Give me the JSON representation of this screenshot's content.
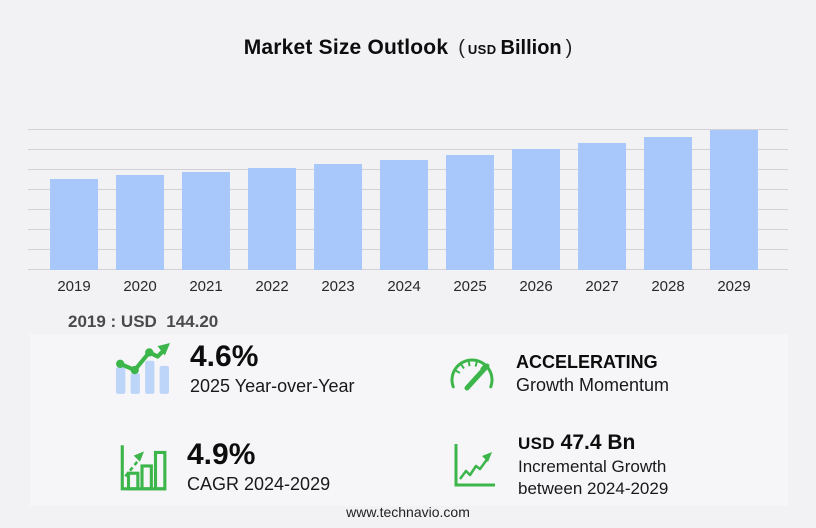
{
  "header": {
    "title": "Market Size Outlook",
    "paren_open": "(",
    "unit_currency": "USD",
    "unit_word": "Billion",
    "paren_close": ")"
  },
  "chart_data": {
    "type": "bar",
    "title": "Market Size Outlook (USD Billion)",
    "categories": [
      "2019",
      "2020",
      "2021",
      "2022",
      "2023",
      "2024",
      "2025",
      "2026",
      "2027",
      "2028",
      "2029"
    ],
    "values": [
      144.2,
      150.4,
      156.6,
      162.3,
      168.0,
      175.2,
      183.3,
      191.9,
      202.2,
      212.1,
      222.6
    ],
    "unit": "USD Billion",
    "xlabel": "",
    "ylabel": "",
    "ylim": [
      0,
      240
    ],
    "yaxis_labels_visible": false,
    "grid": true,
    "legend": "none",
    "bar_color": "#a8c8fb",
    "gridline_color": "#d2d2d6"
  },
  "annotation": {
    "base_year_value": "2019 : USD  144.20"
  },
  "stats": {
    "yoy": {
      "icon": "bar-chart-trend-icon",
      "value": "4.6%",
      "label": "2025 Year-over-Year"
    },
    "momentum": {
      "icon": "speedometer-icon",
      "value": "ACCELERATING",
      "label": "Growth Momentum"
    },
    "cagr": {
      "icon": "growth-bars-icon",
      "value": "4.9%",
      "label": "CAGR 2024-2029"
    },
    "incremental": {
      "icon": "line-growth-icon",
      "currency": "USD",
      "value": "47.4 Bn",
      "label_line1": "Incremental Growth",
      "label_line2": "between 2024-2029"
    }
  },
  "footer": {
    "url": "www.technavio.com"
  },
  "colors": {
    "background": "#f2f2f4",
    "panel": "#f6f6f8",
    "bar_blue": "#a8c8fb",
    "icon_light_blue": "#bdd5f8",
    "accent_green": "#3cb54a",
    "gridline": "#d2d2d6",
    "text_dark": "#0d0d0d"
  }
}
